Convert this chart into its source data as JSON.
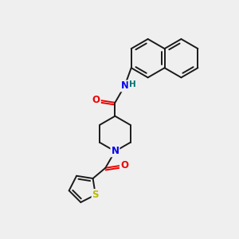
{
  "background_color": "#efefef",
  "bond_color": "#1a1a1a",
  "atom_colors": {
    "N": "#0000ee",
    "O": "#ee0000",
    "S": "#bbbb00",
    "H": "#007070",
    "C": "#1a1a1a"
  },
  "figsize": [
    3.0,
    3.0
  ],
  "dpi": 100
}
